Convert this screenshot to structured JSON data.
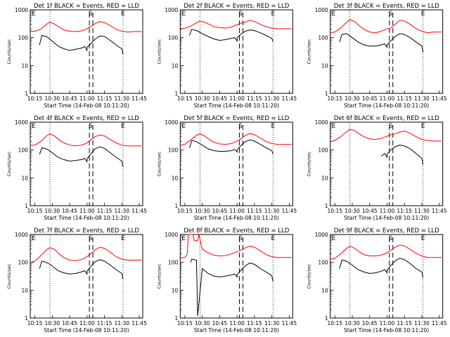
{
  "colors": {
    "events": "#000000",
    "lld": "#ff0000",
    "axes": "#000000",
    "background": "#ffffff"
  },
  "common": {
    "ylabel": "Counts/sec",
    "xlabel": "Start Time (14-Feb-08 10:11:20)",
    "xticks": [
      "10:15",
      "10:30",
      "10:45",
      "11:00",
      "11:15",
      "11:30",
      "11:45"
    ],
    "yticks": [
      "1",
      "10",
      "100",
      "1000"
    ],
    "markers": {
      "left": "E",
      "middle": "S",
      "right": "E"
    }
  },
  "chart_data": [
    {
      "type": "line",
      "title": "Det 1f BLACK = Events, RED = LLD",
      "xlabel": "Start Time (14-Feb-08 10:11:20)",
      "ylabel": "Counts/sec",
      "ylim": [
        1,
        1000
      ],
      "y_scale": "log",
      "xlim": [
        "10:11",
        "11:48"
      ],
      "series": [
        {
          "name": "LLD",
          "color": "#ff0000",
          "x": [
            "10:11",
            "10:15",
            "10:20",
            "10:25",
            "10:28",
            "10:32",
            "10:36",
            "10:40",
            "10:45",
            "10:50",
            "10:55",
            "10:59",
            "11:03",
            "11:07",
            "11:11",
            "11:15",
            "11:20",
            "11:25",
            "11:30",
            "11:35",
            "11:40",
            "11:47"
          ],
          "y": [
            170,
            170,
            200,
            300,
            360,
            310,
            240,
            190,
            170,
            165,
            175,
            200,
            250,
            320,
            380,
            350,
            270,
            200,
            170,
            160,
            165,
            165
          ]
        },
        {
          "name": "Events",
          "color": "#000000",
          "x": [
            "10:19",
            "10:21",
            "10:25",
            "10:30",
            "10:35",
            "10:40",
            "10:45",
            "10:50",
            "10:55",
            "10:58",
            "11:00",
            "11:00",
            "11:03",
            "11:07",
            "11:11",
            "11:15",
            "11:20",
            "11:25",
            "11:30",
            "11:31"
          ],
          "y": [
            55,
            120,
            110,
            75,
            50,
            40,
            35,
            38,
            42,
            48,
            35,
            45,
            60,
            90,
            115,
            110,
            80,
            55,
            40,
            25
          ]
        }
      ]
    },
    {
      "type": "line",
      "title": "Det 2f BLACK = Events, RED = LLD",
      "xlabel": "Start Time (14-Feb-08 10:11:20)",
      "ylabel": "Counts/sec",
      "ylim": [
        1,
        1000
      ],
      "y_scale": "log",
      "xlim": [
        "10:11",
        "11:48"
      ],
      "series": [
        {
          "name": "LLD",
          "color": "#ff0000",
          "x": [
            "10:11",
            "10:15",
            "10:20",
            "10:25",
            "10:28",
            "10:32",
            "10:36",
            "10:40",
            "10:45",
            "10:50",
            "10:55",
            "10:59",
            "11:03",
            "11:07",
            "11:11",
            "11:15",
            "11:20",
            "11:25",
            "11:30",
            "11:35",
            "11:40",
            "11:47"
          ],
          "y": [
            210,
            220,
            260,
            340,
            400,
            360,
            300,
            250,
            230,
            220,
            240,
            280,
            330,
            360,
            420,
            380,
            300,
            250,
            220,
            210,
            210,
            210
          ]
        },
        {
          "name": "Events",
          "color": "#000000",
          "x": [
            "10:19",
            "10:21",
            "10:25",
            "10:30",
            "10:35",
            "10:40",
            "10:45",
            "10:50",
            "10:55",
            "10:58",
            "11:00",
            "11:00",
            "11:03",
            "11:07",
            "11:11",
            "11:15",
            "11:20",
            "11:25",
            "11:30",
            "11:31"
          ],
          "y": [
            120,
            200,
            180,
            140,
            110,
            90,
            80,
            85,
            95,
            100,
            75,
            100,
            130,
            170,
            190,
            180,
            150,
            120,
            95,
            70
          ]
        }
      ]
    },
    {
      "type": "line",
      "title": "Det 3f BLACK = Events, RED = LLD",
      "xlabel": "Start Time (14-Feb-08 10:11:20)",
      "ylabel": "Counts/sec",
      "ylim": [
        1,
        1000
      ],
      "y_scale": "log",
      "xlim": [
        "10:11",
        "11:48"
      ],
      "series": [
        {
          "name": "LLD",
          "color": "#ff0000",
          "x": [
            "10:11",
            "10:15",
            "10:20",
            "10:25",
            "10:28",
            "10:32",
            "10:36",
            "10:40",
            "10:45",
            "10:50",
            "10:55",
            "10:59",
            "11:03",
            "11:07",
            "11:11",
            "11:15",
            "11:20",
            "11:25",
            "11:30",
            "11:35",
            "11:40",
            "11:47"
          ],
          "y": [
            150,
            160,
            220,
            360,
            450,
            380,
            270,
            200,
            160,
            150,
            170,
            200,
            220,
            300,
            420,
            400,
            300,
            210,
            170,
            150,
            160,
            160
          ]
        },
        {
          "name": "Events",
          "color": "#000000",
          "x": [
            "10:19",
            "10:21",
            "10:25",
            "10:30",
            "10:35",
            "10:40",
            "10:45",
            "10:50",
            "10:55",
            "10:58",
            "11:00",
            "11:00",
            "11:03",
            "11:07",
            "11:11",
            "11:15",
            "11:20",
            "11:25",
            "11:30",
            "11:31"
          ],
          "y": [
            70,
            130,
            140,
            100,
            70,
            55,
            50,
            50,
            55,
            60,
            45,
            55,
            75,
            110,
            140,
            130,
            100,
            70,
            50,
            30
          ]
        }
      ]
    },
    {
      "type": "line",
      "title": "Det 4f BLACK = Events, RED = LLD",
      "xlabel": "Start Time (14-Feb-08 10:11:20)",
      "ylabel": "Counts/sec",
      "ylim": [
        1,
        1000
      ],
      "y_scale": "log",
      "xlim": [
        "10:11",
        "11:48"
      ],
      "series": [
        {
          "name": "LLD",
          "color": "#ff0000",
          "x": [
            "10:11",
            "10:15",
            "10:20",
            "10:25",
            "10:28",
            "10:32",
            "10:36",
            "10:40",
            "10:45",
            "10:50",
            "10:55",
            "10:59",
            "11:03",
            "11:07",
            "11:11",
            "11:15",
            "11:20",
            "11:25",
            "11:30",
            "11:35",
            "11:40",
            "11:47"
          ],
          "y": [
            150,
            150,
            200,
            320,
            380,
            320,
            230,
            180,
            150,
            140,
            150,
            170,
            230,
            300,
            350,
            320,
            240,
            180,
            150,
            140,
            140,
            140
          ]
        },
        {
          "name": "Events",
          "color": "#000000",
          "x": [
            "10:19",
            "10:21",
            "10:25",
            "10:30",
            "10:35",
            "10:40",
            "10:45",
            "10:50",
            "10:55",
            "10:58",
            "11:00",
            "11:00",
            "11:03",
            "11:07",
            "11:11",
            "11:15",
            "11:20",
            "11:25",
            "11:30",
            "11:31"
          ],
          "y": [
            70,
            120,
            110,
            80,
            55,
            45,
            40,
            42,
            45,
            50,
            38,
            48,
            70,
            110,
            130,
            115,
            80,
            55,
            40,
            25
          ]
        }
      ]
    },
    {
      "type": "line",
      "title": "Det 5f BLACK = Events, RED = LLD",
      "xlabel": "Start Time (14-Feb-08 10:11:20)",
      "ylabel": "Counts/sec",
      "ylim": [
        1,
        1000
      ],
      "y_scale": "log",
      "xlim": [
        "10:11",
        "11:48"
      ],
      "series": [
        {
          "name": "LLD",
          "color": "#ff0000",
          "x": [
            "10:11",
            "10:15",
            "10:20",
            "10:25",
            "10:28",
            "10:32",
            "10:36",
            "10:40",
            "10:45",
            "10:50",
            "10:55",
            "10:59",
            "11:03",
            "11:07",
            "11:11",
            "11:15",
            "11:20",
            "11:25",
            "11:30",
            "11:35",
            "11:40",
            "11:47"
          ],
          "y": [
            150,
            160,
            230,
            340,
            380,
            320,
            240,
            190,
            165,
            160,
            170,
            200,
            250,
            330,
            390,
            360,
            270,
            200,
            170,
            160,
            160,
            160
          ]
        },
        {
          "name": "Events",
          "color": "#000000",
          "x": [
            "10:19",
            "10:21",
            "10:25",
            "10:30",
            "10:35",
            "10:40",
            "10:45",
            "10:50",
            "10:55",
            "10:58",
            "11:00",
            "11:00",
            "11:03",
            "11:07",
            "11:11",
            "11:15",
            "11:20",
            "11:25",
            "11:30",
            "11:31"
          ],
          "y": [
            120,
            220,
            200,
            150,
            110,
            95,
            90,
            90,
            95,
            105,
            85,
            100,
            140,
            200,
            230,
            210,
            160,
            120,
            95,
            70
          ]
        }
      ]
    },
    {
      "type": "line",
      "title": "Det 6f BLACK = Events, RED = LLD",
      "xlabel": "Start Time (14-Feb-08 10:11:20)",
      "ylabel": "Counts/sec",
      "ylim": [
        1,
        1000
      ],
      "y_scale": "log",
      "xlim": [
        "10:11",
        "11:48"
      ],
      "series": [
        {
          "name": "LLD",
          "color": "#ff0000",
          "x": [
            "10:11",
            "10:15",
            "10:20",
            "10:25",
            "10:28",
            "10:32",
            "10:36",
            "10:40",
            "10:45",
            "10:50",
            "10:55",
            "10:59",
            "11:03",
            "11:07",
            "11:11",
            "11:15",
            "11:20",
            "11:25",
            "11:30",
            "11:35",
            "11:40",
            "11:47"
          ],
          "y": [
            200,
            220,
            300,
            450,
            550,
            500,
            380,
            300,
            250,
            240,
            260,
            300,
            350,
            380,
            440,
            480,
            400,
            300,
            240,
            220,
            210,
            210
          ]
        },
        {
          "name": "Events",
          "color": "#000000",
          "x": [
            "10:55",
            "10:58",
            "11:00",
            "11:00",
            "11:03",
            "11:07",
            "11:11",
            "11:15",
            "11:20",
            "11:25",
            "11:30",
            "11:31"
          ],
          "y": [
            60,
            75,
            55,
            70,
            100,
            130,
            150,
            140,
            110,
            75,
            50,
            30
          ]
        }
      ]
    },
    {
      "type": "line",
      "title": "Det 7f BLACK = Events, RED = LLD",
      "xlabel": "Start Time (14-Feb-08 10:11:20)",
      "ylabel": "Counts/sec",
      "ylim": [
        1,
        1000
      ],
      "y_scale": "log",
      "xlim": [
        "10:11",
        "11:48"
      ],
      "series": [
        {
          "name": "LLD",
          "color": "#ff0000",
          "x": [
            "10:11",
            "10:15",
            "10:20",
            "10:25",
            "10:28",
            "10:32",
            "10:36",
            "10:40",
            "10:45",
            "10:50",
            "10:55",
            "10:59",
            "11:03",
            "11:07",
            "11:11",
            "11:15",
            "11:20",
            "11:25",
            "11:30",
            "11:35",
            "11:40",
            "11:47"
          ],
          "y": [
            100,
            110,
            170,
            280,
            340,
            290,
            200,
            150,
            120,
            115,
            125,
            150,
            200,
            280,
            350,
            320,
            230,
            160,
            130,
            120,
            120,
            120
          ]
        },
        {
          "name": "Events",
          "color": "#000000",
          "x": [
            "10:19",
            "10:21",
            "10:25",
            "10:30",
            "10:35",
            "10:40",
            "10:45",
            "10:50",
            "10:55",
            "10:58",
            "11:00",
            "11:00",
            "11:03",
            "11:07",
            "11:11",
            "11:15",
            "11:20",
            "11:25",
            "11:30",
            "11:31"
          ],
          "y": [
            60,
            110,
            100,
            75,
            50,
            42,
            38,
            40,
            45,
            50,
            38,
            48,
            70,
            105,
            125,
            110,
            80,
            55,
            40,
            25
          ]
        }
      ]
    },
    {
      "type": "line",
      "title": "Det 8f BLACK = Events, RED = LLD",
      "xlabel": "Start Time (14-Feb-08 10:11:20)",
      "ylabel": "Counts/sec",
      "ylim": [
        1,
        1000
      ],
      "y_scale": "log",
      "xlim": [
        "10:11",
        "11:48"
      ],
      "series": [
        {
          "name": "LLD",
          "color": "#ff0000",
          "x": [
            "10:11",
            "10:15",
            "10:17",
            "10:18",
            "10:22",
            "10:23",
            "10:26",
            "10:27",
            "10:30",
            "10:35",
            "10:40",
            "10:45",
            "10:50",
            "10:55",
            "10:59",
            "11:03",
            "11:07",
            "11:11",
            "11:15",
            "11:20",
            "11:25",
            "11:30",
            "11:35",
            "11:40",
            "11:47"
          ],
          "y": [
            140,
            150,
            190,
            1000,
            1000,
            600,
            600,
            1000,
            300,
            220,
            180,
            170,
            175,
            200,
            230,
            270,
            330,
            380,
            350,
            260,
            190,
            160,
            150,
            150,
            150
          ]
        },
        {
          "name": "Events",
          "color": "#000000",
          "x": [
            "10:20",
            "10:21",
            "10:25",
            "10:26",
            "10:30",
            "10:35",
            "10:40",
            "10:45",
            "10:50",
            "10:55",
            "10:58",
            "11:00",
            "11:00",
            "11:03",
            "11:07",
            "11:11",
            "11:15",
            "11:20",
            "11:25",
            "11:30",
            "11:31"
          ],
          "y": [
            100,
            130,
            120,
            1.2,
            60,
            40,
            32,
            30,
            32,
            35,
            38,
            30,
            36,
            50,
            75,
            95,
            85,
            60,
            45,
            33,
            20
          ]
        }
      ]
    },
    {
      "type": "line",
      "title": "Det 9f BLACK = Events, RED = LLD",
      "xlabel": "Start Time (14-Feb-08 10:11:20)",
      "ylabel": "Counts/sec",
      "ylim": [
        1,
        1000
      ],
      "y_scale": "log",
      "xlim": [
        "10:11",
        "11:48"
      ],
      "series": [
        {
          "name": "LLD",
          "color": "#ff0000",
          "x": [
            "10:11",
            "10:15",
            "10:20",
            "10:25",
            "10:28",
            "10:32",
            "10:36",
            "10:40",
            "10:45",
            "10:50",
            "10:55",
            "10:59",
            "11:03",
            "11:07",
            "11:11",
            "11:15",
            "11:20",
            "11:25",
            "11:30",
            "11:35",
            "11:40",
            "11:47"
          ],
          "y": [
            130,
            140,
            200,
            320,
            380,
            320,
            240,
            190,
            170,
            170,
            180,
            210,
            270,
            350,
            420,
            390,
            290,
            210,
            170,
            150,
            150,
            150
          ]
        },
        {
          "name": "Events",
          "color": "#000000",
          "x": [
            "10:19",
            "10:21",
            "10:25",
            "10:30",
            "10:35",
            "10:40",
            "10:45",
            "10:50",
            "10:55",
            "10:58",
            "11:00",
            "11:00",
            "11:03",
            "11:07",
            "11:11",
            "11:15",
            "11:20",
            "11:25",
            "11:30",
            "11:31"
          ],
          "y": [
            60,
            120,
            110,
            80,
            55,
            45,
            40,
            42,
            48,
            55,
            42,
            52,
            75,
            115,
            140,
            125,
            90,
            60,
            45,
            28
          ]
        }
      ]
    }
  ]
}
